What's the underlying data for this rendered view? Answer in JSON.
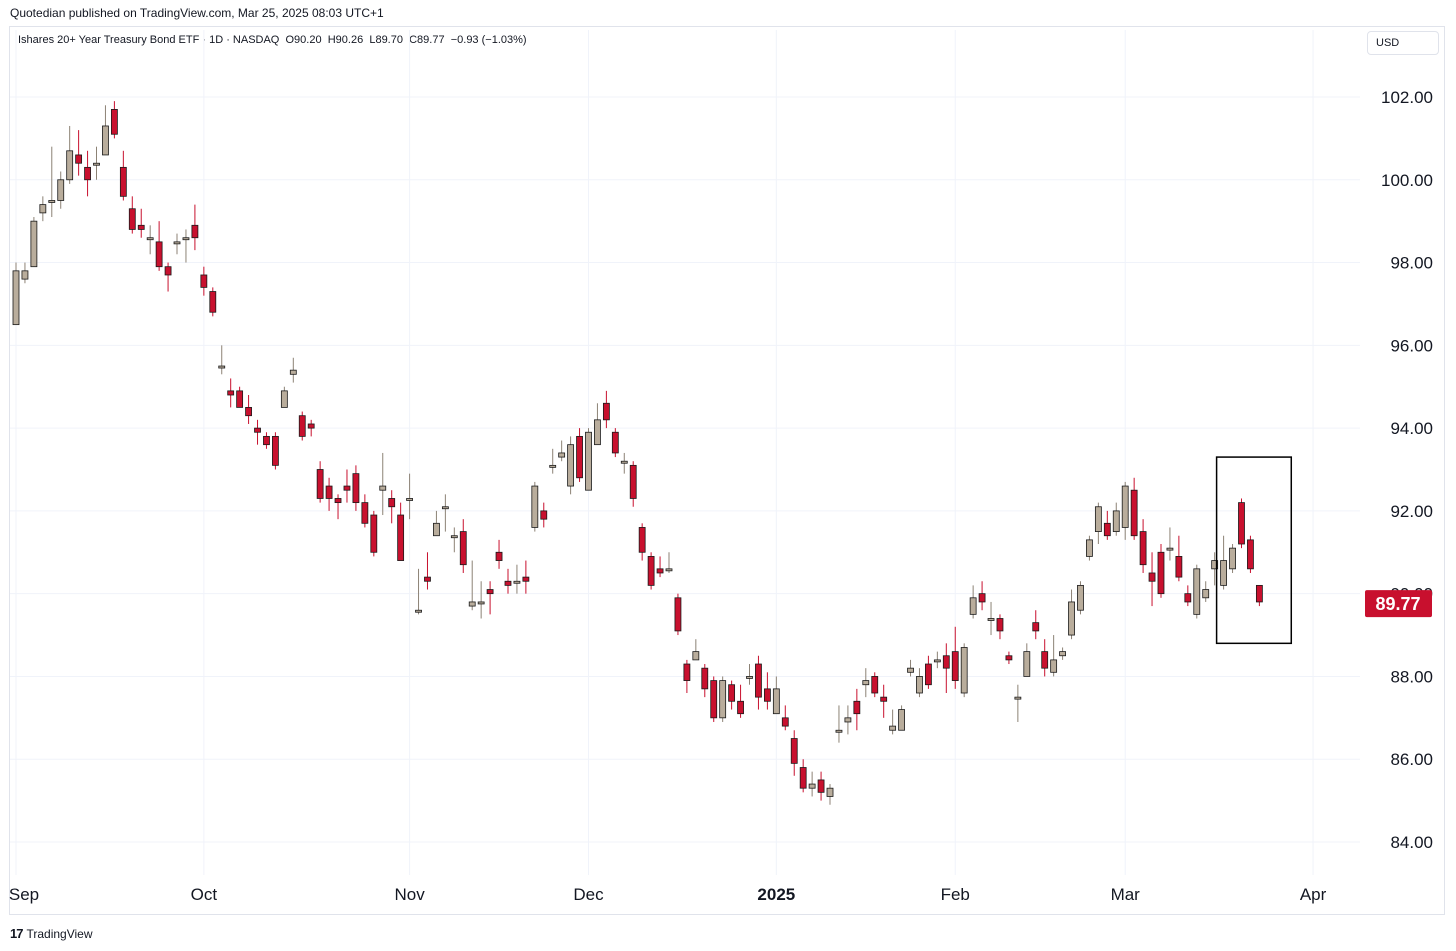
{
  "publisher_line": "Quotedian published on TradingView.com, Mar 25, 2025 08:03 UTC+1",
  "legend": {
    "text": "Ishares 20+ Year Treasury Bond ETF · 1D · NASDAQ",
    "open": "O90.20",
    "high": "H90.26",
    "low": "L89.70",
    "close": "C89.77",
    "change": "−0.93 (−1.03%)"
  },
  "currency": "USD",
  "last_price_label": "89.77",
  "footer": {
    "brand": "TradingView",
    "mark": "17"
  },
  "colors": {
    "up": "#b9ad9c",
    "down": "#c8102e",
    "grid": "#f0f3fa",
    "text": "#131722"
  },
  "chart_data": {
    "type": "candlestick",
    "title": "Ishares 20+ Year Treasury Bond ETF · 1D · NASDAQ",
    "ylim": [
      83.5,
      103.5
    ],
    "y_ticks": [
      84,
      86,
      88,
      90,
      92,
      94,
      96,
      98,
      100,
      102
    ],
    "y_tick_labels": [
      "84.00",
      "86.00",
      "88.00",
      "90.00",
      "92.00",
      "94.00",
      "96.00",
      "98.00",
      "100.00",
      "102.00"
    ],
    "x_ticks": [
      {
        "label": "Sep",
        "index": 0,
        "bold": false
      },
      {
        "label": "Oct",
        "index": 21,
        "bold": false
      },
      {
        "label": "Nov",
        "index": 44,
        "bold": false
      },
      {
        "label": "Dec",
        "index": 64,
        "bold": false
      },
      {
        "label": "2025",
        "index": 85,
        "bold": true
      },
      {
        "label": "Feb",
        "index": 105,
        "bold": false
      },
      {
        "label": "Mar",
        "index": 124,
        "bold": false
      },
      {
        "label": "Apr",
        "index": 145,
        "bold": false
      }
    ],
    "x_count": 147,
    "last_close": 89.77,
    "highlight_box": {
      "from_index": 135,
      "to_index": 141,
      "low": 88.8,
      "high": 93.3
    },
    "candles": [
      [
        96.5,
        97.8,
        98.0,
        96.5
      ],
      [
        97.6,
        97.8,
        98.0,
        97.5
      ],
      [
        97.9,
        99.0,
        99.1,
        97.9
      ],
      [
        99.2,
        99.4,
        99.6,
        99.0
      ],
      [
        99.5,
        99.5,
        100.8,
        99.1
      ],
      [
        99.5,
        100.0,
        100.2,
        99.3
      ],
      [
        100.0,
        100.7,
        101.3,
        99.9
      ],
      [
        100.6,
        100.4,
        101.2,
        100.1
      ],
      [
        100.3,
        100.0,
        100.7,
        99.6
      ],
      [
        100.4,
        100.4,
        100.8,
        100.0
      ],
      [
        100.6,
        101.3,
        101.8,
        100.6
      ],
      [
        101.7,
        101.1,
        101.9,
        101.0
      ],
      [
        100.3,
        99.6,
        100.7,
        99.5
      ],
      [
        99.3,
        98.8,
        99.6,
        98.7
      ],
      [
        98.9,
        98.8,
        99.3,
        98.6
      ],
      [
        98.6,
        98.6,
        98.9,
        98.2
      ],
      [
        98.5,
        97.9,
        99.0,
        97.8
      ],
      [
        97.9,
        97.7,
        98.0,
        97.3
      ],
      [
        98.5,
        98.5,
        98.7,
        98.2
      ],
      [
        98.6,
        98.6,
        98.8,
        98.0
      ],
      [
        98.9,
        98.6,
        99.4,
        98.3
      ],
      [
        97.7,
        97.4,
        97.9,
        97.2
      ],
      [
        97.3,
        96.8,
        97.4,
        96.7
      ],
      [
        95.5,
        95.5,
        96.0,
        95.3
      ],
      [
        94.9,
        94.8,
        95.2,
        94.5
      ],
      [
        94.9,
        94.5,
        95.0,
        94.5
      ],
      [
        94.5,
        94.3,
        94.8,
        94.1
      ],
      [
        94.0,
        93.9,
        94.2,
        93.6
      ],
      [
        93.8,
        93.6,
        93.9,
        93.5
      ],
      [
        93.8,
        93.1,
        93.9,
        93.0
      ],
      [
        94.5,
        94.9,
        95.0,
        94.5
      ],
      [
        95.3,
        95.4,
        95.7,
        95.1
      ],
      [
        94.3,
        93.8,
        94.4,
        93.7
      ],
      [
        94.1,
        94.0,
        94.2,
        93.8
      ],
      [
        93.0,
        92.3,
        93.2,
        92.2
      ],
      [
        92.6,
        92.3,
        92.8,
        92.0
      ],
      [
        92.3,
        92.2,
        92.4,
        91.8
      ],
      [
        92.6,
        92.5,
        93.0,
        92.2
      ],
      [
        92.9,
        92.2,
        93.1,
        92.0
      ],
      [
        92.2,
        91.7,
        92.4,
        91.6
      ],
      [
        91.9,
        91.0,
        92.0,
        90.9
      ],
      [
        92.5,
        92.6,
        93.4,
        91.9
      ],
      [
        92.3,
        92.1,
        92.5,
        91.7
      ],
      [
        91.9,
        90.8,
        92.2,
        90.8
      ],
      [
        92.3,
        92.3,
        92.9,
        91.8
      ],
      [
        89.6,
        89.6,
        90.6,
        89.5
      ],
      [
        90.4,
        90.3,
        91.0,
        90.1
      ],
      [
        91.4,
        91.7,
        92.0,
        91.4
      ],
      [
        92.1,
        92.1,
        92.4,
        91.5
      ],
      [
        91.4,
        91.4,
        91.6,
        91.0
      ],
      [
        91.5,
        90.7,
        91.8,
        90.5
      ],
      [
        89.7,
        89.8,
        90.8,
        89.6
      ],
      [
        89.8,
        89.8,
        90.3,
        89.4
      ],
      [
        90.1,
        90.0,
        90.3,
        89.5
      ],
      [
        91.0,
        90.8,
        91.3,
        90.6
      ],
      [
        90.3,
        90.2,
        90.6,
        90.0
      ],
      [
        90.3,
        90.3,
        90.7,
        90.0
      ],
      [
        90.4,
        90.3,
        90.8,
        90.0
      ],
      [
        91.6,
        92.6,
        92.7,
        91.5
      ],
      [
        92.0,
        91.8,
        92.2,
        91.6
      ],
      [
        93.1,
        93.1,
        93.5,
        92.9
      ],
      [
        93.3,
        93.4,
        93.7,
        93.2
      ],
      [
        92.6,
        93.6,
        93.8,
        92.4
      ],
      [
        93.8,
        92.8,
        94.0,
        92.7
      ],
      [
        92.5,
        93.9,
        94.0,
        92.5
      ],
      [
        93.6,
        94.2,
        94.6,
        93.6
      ],
      [
        94.6,
        94.2,
        94.9,
        94.0
      ],
      [
        93.9,
        93.4,
        94.0,
        93.3
      ],
      [
        93.2,
        93.2,
        93.4,
        92.9
      ],
      [
        93.1,
        92.3,
        93.2,
        92.1
      ],
      [
        91.6,
        91.0,
        91.7,
        90.8
      ],
      [
        90.9,
        90.2,
        91.0,
        90.1
      ],
      [
        90.6,
        90.5,
        90.9,
        90.4
      ],
      [
        90.6,
        90.6,
        91.0,
        90.5
      ],
      [
        89.9,
        89.1,
        90.0,
        89.0
      ],
      [
        88.3,
        87.9,
        88.4,
        87.6
      ],
      [
        88.4,
        88.6,
        88.9,
        88.4
      ],
      [
        88.2,
        87.7,
        88.3,
        87.5
      ],
      [
        87.9,
        87.0,
        88.0,
        86.9
      ],
      [
        87.0,
        87.9,
        88.0,
        86.9
      ],
      [
        87.8,
        87.4,
        87.9,
        87.2
      ],
      [
        87.4,
        87.1,
        87.8,
        87.0
      ],
      [
        88.0,
        88.0,
        88.3,
        87.8
      ],
      [
        88.3,
        87.5,
        88.5,
        87.2
      ],
      [
        87.7,
        87.4,
        88.1,
        87.2
      ],
      [
        87.1,
        87.7,
        88.0,
        87.1
      ],
      [
        87.0,
        86.8,
        87.3,
        86.7
      ],
      [
        86.5,
        85.9,
        86.7,
        85.6
      ],
      [
        85.8,
        85.3,
        86.0,
        85.2
      ],
      [
        85.3,
        85.4,
        85.7,
        85.1
      ],
      [
        85.5,
        85.2,
        85.7,
        85.0
      ],
      [
        85.1,
        85.3,
        85.4,
        84.9
      ],
      [
        86.7,
        86.7,
        87.3,
        86.4
      ],
      [
        86.9,
        87.0,
        87.3,
        86.6
      ],
      [
        87.4,
        87.1,
        87.7,
        86.7
      ],
      [
        87.8,
        87.9,
        88.2,
        87.5
      ],
      [
        88.0,
        87.6,
        88.1,
        87.5
      ],
      [
        87.5,
        87.4,
        87.8,
        87.0
      ],
      [
        86.7,
        86.8,
        87.2,
        86.6
      ],
      [
        86.7,
        87.2,
        87.3,
        86.7
      ],
      [
        88.1,
        88.2,
        88.4,
        88.0
      ],
      [
        87.6,
        88.0,
        88.2,
        87.5
      ],
      [
        88.3,
        87.8,
        88.5,
        87.7
      ],
      [
        88.4,
        88.4,
        88.6,
        88.2
      ],
      [
        88.5,
        88.2,
        88.8,
        87.6
      ],
      [
        88.6,
        87.9,
        89.2,
        87.7
      ],
      [
        87.6,
        88.7,
        88.8,
        87.5
      ],
      [
        89.5,
        89.9,
        90.2,
        89.4
      ],
      [
        90.0,
        89.8,
        90.3,
        89.6
      ],
      [
        89.4,
        89.4,
        89.8,
        89.0
      ],
      [
        89.4,
        89.1,
        89.5,
        88.9
      ],
      [
        88.5,
        88.4,
        88.6,
        88.3
      ],
      [
        87.5,
        87.5,
        87.8,
        86.9
      ],
      [
        88.0,
        88.6,
        88.8,
        88.0
      ],
      [
        89.3,
        89.1,
        89.6,
        88.9
      ],
      [
        88.6,
        88.2,
        88.9,
        88.0
      ],
      [
        88.1,
        88.4,
        89.0,
        88.0
      ],
      [
        88.5,
        88.6,
        88.7,
        88.4
      ],
      [
        89.0,
        89.8,
        90.1,
        88.9
      ],
      [
        89.6,
        90.2,
        90.3,
        89.5
      ],
      [
        90.9,
        91.3,
        91.4,
        90.8
      ],
      [
        91.5,
        92.1,
        92.2,
        91.2
      ],
      [
        91.7,
        91.4,
        92.0,
        91.3
      ],
      [
        91.5,
        92.0,
        92.2,
        91.4
      ],
      [
        91.6,
        92.6,
        92.7,
        91.3
      ],
      [
        92.5,
        91.4,
        92.8,
        91.3
      ],
      [
        91.5,
        90.7,
        91.8,
        90.5
      ],
      [
        90.5,
        90.3,
        91.0,
        89.7
      ],
      [
        91.0,
        90.0,
        91.2,
        89.9
      ],
      [
        91.1,
        91.1,
        91.6,
        90.8
      ],
      [
        90.9,
        90.4,
        91.4,
        90.3
      ],
      [
        90.0,
        89.8,
        90.2,
        89.7
      ],
      [
        89.5,
        90.6,
        90.7,
        89.4
      ],
      [
        89.9,
        90.1,
        90.3,
        89.8
      ],
      [
        90.6,
        90.8,
        91.0,
        90.2
      ],
      [
        90.2,
        90.8,
        91.4,
        90.1
      ],
      [
        90.6,
        91.1,
        91.2,
        90.5
      ],
      [
        92.2,
        91.2,
        92.3,
        91.1
      ],
      [
        91.3,
        90.6,
        91.4,
        90.5
      ],
      [
        90.2,
        89.8,
        90.2,
        89.7
      ]
    ]
  }
}
